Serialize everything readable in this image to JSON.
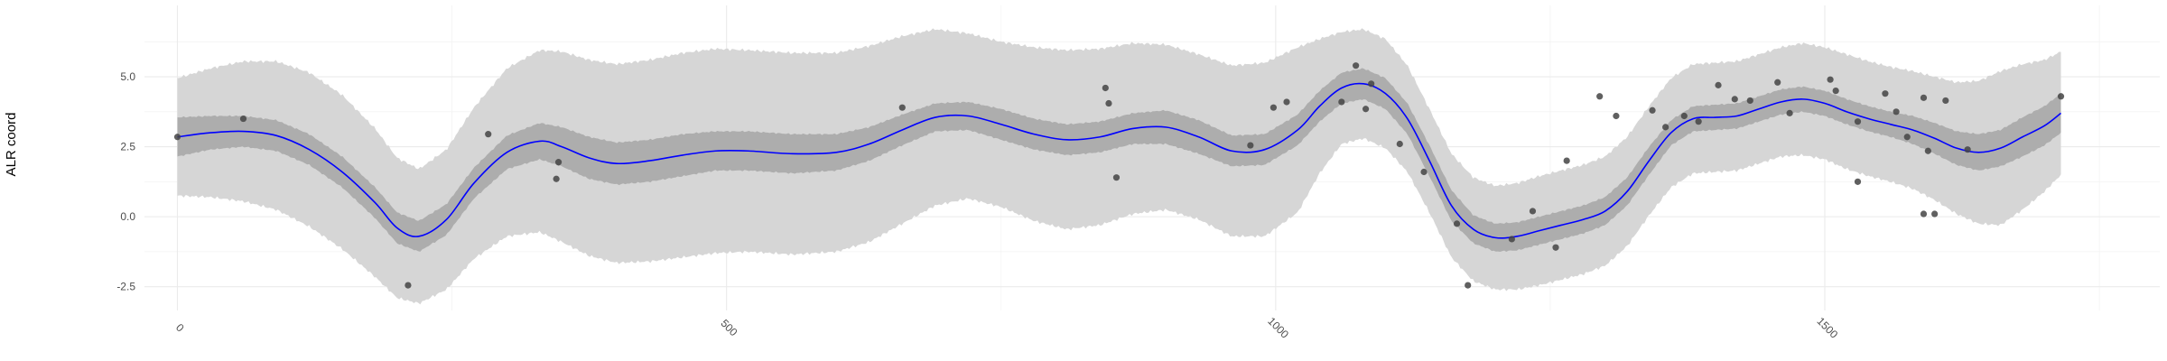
{
  "chart_data": {
    "type": "line",
    "title": "",
    "xlabel": "",
    "ylabel": "ALR coord",
    "xlim": [
      -30,
      1805
    ],
    "ylim": [
      -3.35,
      7.55
    ],
    "grid": true,
    "x_ticks": [
      0,
      500,
      1000,
      1500
    ],
    "x_tick_labels": [
      "0",
      "500",
      "1000",
      "1500"
    ],
    "y_ticks": [
      -2.5,
      0.0,
      2.5,
      5.0
    ],
    "y_tick_labels": [
      "-2.5",
      "0.0",
      "2.5",
      "5.0"
    ],
    "colors": {
      "mean_line": "#0000ff",
      "inner_band": "#adadad",
      "outer_band": "#d6d6d6",
      "points": "#444444",
      "grid": "#ebebeb"
    },
    "mean": {
      "x": [
        0,
        30,
        60,
        90,
        120,
        150,
        180,
        200,
        220,
        245,
        270,
        300,
        330,
        350,
        375,
        400,
        430,
        460,
        490,
        520,
        560,
        600,
        630,
        660,
        690,
        720,
        750,
        780,
        810,
        840,
        870,
        900,
        930,
        960,
        990,
        1020,
        1040,
        1060,
        1080,
        1100,
        1120,
        1140,
        1160,
        1180,
        1200,
        1220,
        1240,
        1260,
        1280,
        1300,
        1320,
        1340,
        1360,
        1380,
        1400,
        1420,
        1440,
        1460,
        1480,
        1500,
        1520,
        1540,
        1560,
        1580,
        1600,
        1620,
        1640,
        1660,
        1680,
        1700,
        1715
      ],
      "y": [
        2.85,
        3.0,
        3.05,
        2.9,
        2.4,
        1.6,
        0.5,
        -0.4,
        -0.7,
        -0.1,
        1.2,
        2.3,
        2.7,
        2.5,
        2.1,
        1.9,
        2.0,
        2.2,
        2.35,
        2.35,
        2.25,
        2.3,
        2.6,
        3.1,
        3.55,
        3.6,
        3.3,
        2.95,
        2.75,
        2.85,
        3.15,
        3.2,
        2.85,
        2.35,
        2.4,
        3.1,
        3.95,
        4.6,
        4.75,
        4.4,
        3.5,
        2.0,
        0.4,
        -0.45,
        -0.75,
        -0.7,
        -0.5,
        -0.3,
        -0.1,
        0.2,
        0.9,
        2.0,
        3.0,
        3.5,
        3.55,
        3.6,
        3.85,
        4.1,
        4.2,
        4.05,
        3.75,
        3.5,
        3.3,
        3.1,
        2.8,
        2.45,
        2.3,
        2.45,
        2.85,
        3.25,
        3.7
      ]
    },
    "inner_band_halfwidth": [
      0.7,
      0.6,
      0.55,
      0.55,
      0.55,
      0.55,
      0.55,
      0.55,
      0.55,
      0.55,
      0.55,
      0.6,
      0.65,
      0.7,
      0.75,
      0.75,
      0.75,
      0.75,
      0.7,
      0.7,
      0.7,
      0.65,
      0.6,
      0.55,
      0.5,
      0.5,
      0.55,
      0.55,
      0.55,
      0.55,
      0.55,
      0.6,
      0.6,
      0.55,
      0.55,
      0.55,
      0.55,
      0.55,
      0.55,
      0.55,
      0.55,
      0.55,
      0.55,
      0.5,
      0.5,
      0.5,
      0.5,
      0.5,
      0.5,
      0.5,
      0.5,
      0.5,
      0.45,
      0.45,
      0.45,
      0.45,
      0.45,
      0.45,
      0.45,
      0.45,
      0.45,
      0.45,
      0.45,
      0.5,
      0.55,
      0.6,
      0.65,
      0.65,
      0.7,
      0.7,
      0.7
    ],
    "outer_band_halfwidth": [
      2.1,
      2.3,
      2.5,
      2.65,
      2.75,
      2.75,
      2.65,
      2.5,
      2.4,
      2.5,
      2.7,
      3.0,
      3.25,
      3.4,
      3.5,
      3.55,
      3.6,
      3.65,
      3.65,
      3.6,
      3.6,
      3.55,
      3.5,
      3.35,
      3.15,
      2.95,
      2.95,
      3.1,
      3.2,
      3.15,
      3.05,
      2.95,
      2.95,
      3.05,
      3.1,
      2.95,
      2.4,
      2.0,
      1.95,
      1.95,
      1.9,
      1.85,
      1.85,
      1.85,
      1.85,
      1.9,
      1.95,
      1.95,
      1.95,
      1.95,
      1.95,
      1.95,
      1.95,
      1.95,
      1.95,
      1.95,
      1.95,
      1.95,
      2.0,
      2.0,
      2.05,
      2.05,
      2.05,
      2.1,
      2.2,
      2.35,
      2.55,
      2.75,
      2.6,
      2.35,
      2.2
    ],
    "points": {
      "x": [
        0,
        60,
        210,
        283,
        345,
        347,
        660,
        845,
        848,
        855,
        977,
        998,
        1010,
        1060,
        1073,
        1082,
        1087,
        1113,
        1135,
        1165,
        1175,
        1215,
        1234,
        1255,
        1265,
        1295,
        1310,
        1343,
        1355,
        1372,
        1385,
        1403,
        1418,
        1432,
        1457,
        1468,
        1505,
        1510,
        1530,
        1530,
        1555,
        1565,
        1575,
        1590,
        1590,
        1594,
        1600,
        1610,
        1630,
        1715
      ],
      "y": [
        2.85,
        3.5,
        -2.45,
        2.95,
        1.35,
        1.95,
        3.9,
        4.6,
        4.05,
        1.4,
        2.55,
        3.9,
        4.1,
        4.1,
        5.4,
        3.85,
        4.75,
        2.6,
        1.6,
        -0.25,
        -2.45,
        -0.8,
        0.2,
        -1.1,
        2.0,
        4.3,
        3.6,
        3.8,
        3.2,
        3.6,
        3.4,
        4.7,
        4.2,
        4.15,
        4.8,
        3.7,
        4.9,
        4.5,
        3.4,
        1.25,
        4.4,
        3.75,
        2.85,
        4.25,
        0.1,
        2.35,
        0.1,
        4.15,
        2.4,
        4.3
      ]
    }
  }
}
